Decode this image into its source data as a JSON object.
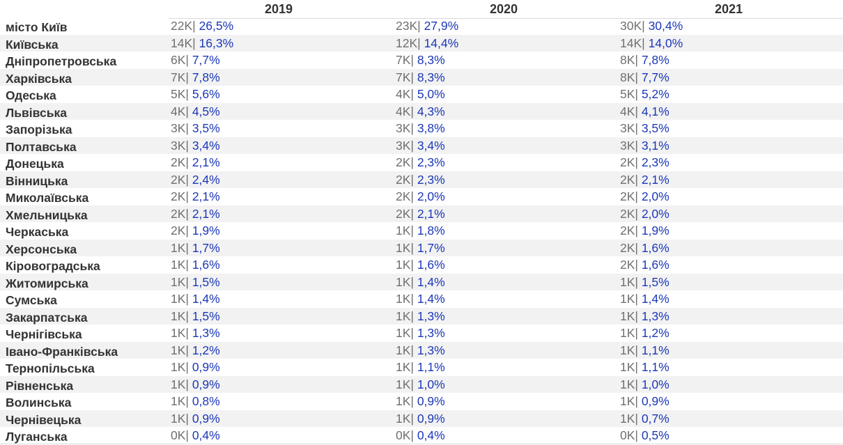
{
  "chart_data": {
    "type": "table",
    "title": "",
    "years": [
      "2019",
      "2020",
      "2021"
    ],
    "separator": "|",
    "rows": [
      {
        "region": "місто Київ",
        "cells": [
          {
            "abs": "22K",
            "pct": "26,5%"
          },
          {
            "abs": "23K",
            "pct": "27,9%"
          },
          {
            "abs": "30K",
            "pct": "30,4%"
          }
        ]
      },
      {
        "region": "Київська",
        "cells": [
          {
            "abs": "14K",
            "pct": "16,3%"
          },
          {
            "abs": "12K",
            "pct": "14,4%"
          },
          {
            "abs": "14K",
            "pct": "14,0%"
          }
        ]
      },
      {
        "region": "Дніпропетровська",
        "cells": [
          {
            "abs": "6K",
            "pct": "7,7%"
          },
          {
            "abs": "7K",
            "pct": "8,3%"
          },
          {
            "abs": "8K",
            "pct": "7,8%"
          }
        ]
      },
      {
        "region": "Харківська",
        "cells": [
          {
            "abs": "7K",
            "pct": "7,8%"
          },
          {
            "abs": "7K",
            "pct": "8,3%"
          },
          {
            "abs": "8K",
            "pct": "7,7%"
          }
        ]
      },
      {
        "region": "Одеська",
        "cells": [
          {
            "abs": "5K",
            "pct": "5,6%"
          },
          {
            "abs": "4K",
            "pct": "5,0%"
          },
          {
            "abs": "5K",
            "pct": "5,2%"
          }
        ]
      },
      {
        "region": "Львівська",
        "cells": [
          {
            "abs": "4K",
            "pct": "4,5%"
          },
          {
            "abs": "4K",
            "pct": "4,3%"
          },
          {
            "abs": "4K",
            "pct": "4,1%"
          }
        ]
      },
      {
        "region": "Запорізька",
        "cells": [
          {
            "abs": "3K",
            "pct": "3,5%"
          },
          {
            "abs": "3K",
            "pct": "3,8%"
          },
          {
            "abs": "3K",
            "pct": "3,5%"
          }
        ]
      },
      {
        "region": "Полтавська",
        "cells": [
          {
            "abs": "3K",
            "pct": "3,4%"
          },
          {
            "abs": "3K",
            "pct": "3,4%"
          },
          {
            "abs": "3K",
            "pct": "3,1%"
          }
        ]
      },
      {
        "region": "Донецька",
        "cells": [
          {
            "abs": "2K",
            "pct": "2,1%"
          },
          {
            "abs": "2K",
            "pct": "2,3%"
          },
          {
            "abs": "2K",
            "pct": "2,3%"
          }
        ]
      },
      {
        "region": "Вінницька",
        "cells": [
          {
            "abs": "2K",
            "pct": "2,4%"
          },
          {
            "abs": "2K",
            "pct": "2,3%"
          },
          {
            "abs": "2K",
            "pct": "2,1%"
          }
        ]
      },
      {
        "region": "Миколаївська",
        "cells": [
          {
            "abs": "2K",
            "pct": "2,1%"
          },
          {
            "abs": "2K",
            "pct": "2,0%"
          },
          {
            "abs": "2K",
            "pct": "2,0%"
          }
        ]
      },
      {
        "region": "Хмельницька",
        "cells": [
          {
            "abs": "2K",
            "pct": "2,1%"
          },
          {
            "abs": "2K",
            "pct": "2,1%"
          },
          {
            "abs": "2K",
            "pct": "2,0%"
          }
        ]
      },
      {
        "region": "Черкаська",
        "cells": [
          {
            "abs": "2K",
            "pct": "1,9%"
          },
          {
            "abs": "1K",
            "pct": "1,8%"
          },
          {
            "abs": "2K",
            "pct": "1,9%"
          }
        ]
      },
      {
        "region": "Херсонська",
        "cells": [
          {
            "abs": "1K",
            "pct": "1,7%"
          },
          {
            "abs": "1K",
            "pct": "1,7%"
          },
          {
            "abs": "2K",
            "pct": "1,6%"
          }
        ]
      },
      {
        "region": "Кіровоградська",
        "cells": [
          {
            "abs": "1K",
            "pct": "1,6%"
          },
          {
            "abs": "1K",
            "pct": "1,6%"
          },
          {
            "abs": "2K",
            "pct": "1,6%"
          }
        ]
      },
      {
        "region": "Житомирська",
        "cells": [
          {
            "abs": "1K",
            "pct": "1,5%"
          },
          {
            "abs": "1K",
            "pct": "1,4%"
          },
          {
            "abs": "1K",
            "pct": "1,5%"
          }
        ]
      },
      {
        "region": "Сумська",
        "cells": [
          {
            "abs": "1K",
            "pct": "1,4%"
          },
          {
            "abs": "1K",
            "pct": "1,4%"
          },
          {
            "abs": "1K",
            "pct": "1,4%"
          }
        ]
      },
      {
        "region": "Закарпатська",
        "cells": [
          {
            "abs": "1K",
            "pct": "1,5%"
          },
          {
            "abs": "1K",
            "pct": "1,3%"
          },
          {
            "abs": "1K",
            "pct": "1,3%"
          }
        ]
      },
      {
        "region": "Чернігівська",
        "cells": [
          {
            "abs": "1K",
            "pct": "1,3%"
          },
          {
            "abs": "1K",
            "pct": "1,3%"
          },
          {
            "abs": "1K",
            "pct": "1,2%"
          }
        ]
      },
      {
        "region": "Івано-Франківська",
        "cells": [
          {
            "abs": "1K",
            "pct": "1,2%"
          },
          {
            "abs": "1K",
            "pct": "1,3%"
          },
          {
            "abs": "1K",
            "pct": "1,1%"
          }
        ]
      },
      {
        "region": "Тернопільська",
        "cells": [
          {
            "abs": "1K",
            "pct": "0,9%"
          },
          {
            "abs": "1K",
            "pct": "1,1%"
          },
          {
            "abs": "1K",
            "pct": "1,1%"
          }
        ]
      },
      {
        "region": "Рівненська",
        "cells": [
          {
            "abs": "1K",
            "pct": "0,9%"
          },
          {
            "abs": "1K",
            "pct": "1,0%"
          },
          {
            "abs": "1K",
            "pct": "1,0%"
          }
        ]
      },
      {
        "region": "Волинська",
        "cells": [
          {
            "abs": "1K",
            "pct": "0,8%"
          },
          {
            "abs": "1K",
            "pct": "0,9%"
          },
          {
            "abs": "1K",
            "pct": "0,9%"
          }
        ]
      },
      {
        "region": "Чернівецька",
        "cells": [
          {
            "abs": "1K",
            "pct": "0,9%"
          },
          {
            "abs": "1K",
            "pct": "0,9%"
          },
          {
            "abs": "1K",
            "pct": "0,7%"
          }
        ]
      },
      {
        "region": "Луганська",
        "cells": [
          {
            "abs": "0K",
            "pct": "0,4%"
          },
          {
            "abs": "0K",
            "pct": "0,4%"
          },
          {
            "abs": "0K",
            "pct": "0,5%"
          }
        ]
      }
    ],
    "colors": {
      "absolute": "#6f6f6f",
      "percent": "#1c38b8",
      "region": "#333333",
      "stripe": "#f2f2f2"
    }
  }
}
